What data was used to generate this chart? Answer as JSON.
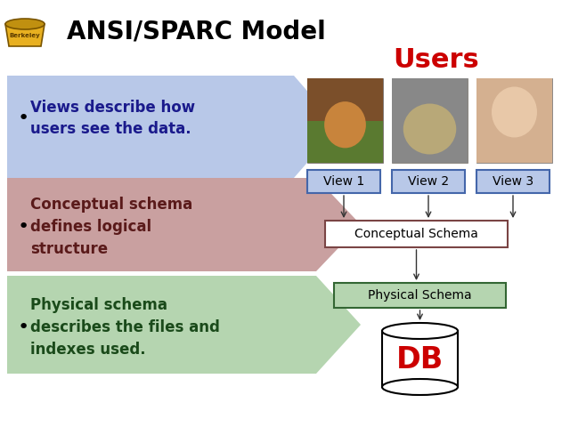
{
  "title": "ANSI/SPARC Model",
  "users_label": "Users",
  "users_color": "#cc0000",
  "bg_color": "#ffffff",
  "bullet1_text": "Views describe how\nusers see the data.",
  "bullet1_bg": "#b8c8e8",
  "bullet2_text": "Conceptual schema\ndefines logical\nstructure",
  "bullet2_bg": "#c9a0a0",
  "bullet3_text": "Physical schema\ndescribes the files and\nindexes used.",
  "bullet3_bg": "#b5d5b0",
  "view1_label": "View 1",
  "view2_label": "View 2",
  "view3_label": "View 3",
  "conceptual_schema_label": "Conceptual Schema",
  "physical_schema_label": "Physical Schema",
  "db_label": "DB",
  "db_color": "#cc0000",
  "arrow_color": "#333333",
  "view_box_border": "#4466aa",
  "cs_box_border": "#7a4444",
  "ps_box_border": "#336633",
  "schema_box_bg": "#ffffff",
  "photo_colors": [
    "#8B5E3C",
    "#C8A880",
    "#E8C8B0"
  ],
  "bullet_text_color1": "#1a1a8c",
  "bullet_text_color2": "#5a1a1a",
  "bullet_text_color3": "#1a4a1a"
}
